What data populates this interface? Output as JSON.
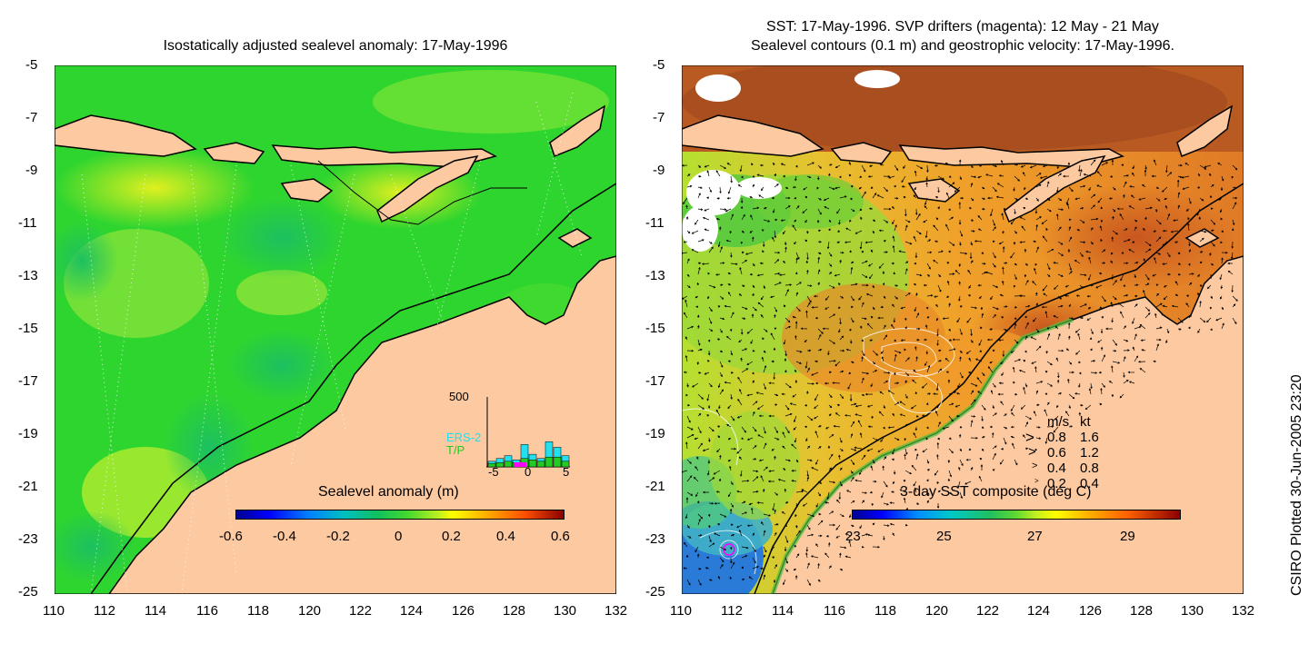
{
  "left_map": {
    "title": "Isostatically adjusted sealevel anomaly: 17-May-1996",
    "x_ticks": [
      "110",
      "112",
      "114",
      "116",
      "118",
      "120",
      "122",
      "124",
      "126",
      "128",
      "130",
      "132"
    ],
    "y_ticks": [
      "-5",
      "-7",
      "-9",
      "-11",
      "-13",
      "-15",
      "-17",
      "-19",
      "-21",
      "-23",
      "-25"
    ],
    "colorbar": {
      "label": "Sealevel anomaly (m)",
      "ticks": [
        "-0.6",
        "-0.4",
        "-0.2",
        "0",
        "0.2",
        "0.4",
        "0.6"
      ],
      "range": [
        -0.6,
        0.6
      ]
    },
    "histogram": {
      "y_max_label": "500",
      "x_ticks": [
        "-5",
        "0",
        "5"
      ],
      "legend": [
        "ERS-2",
        "T/P"
      ],
      "colors": {
        "ers2": "#22e0f0",
        "tp": "#22cc22",
        "marker": "#ff00ff"
      },
      "ers2_counts": [
        40,
        60,
        80,
        50,
        160,
        90,
        60,
        180,
        140,
        80
      ],
      "tp_counts": [
        25,
        30,
        40,
        30,
        60,
        50,
        40,
        70,
        70,
        40
      ]
    }
  },
  "right_map": {
    "title_line1": "SST: 17-May-1996. SVP drifters (magenta): 12 May - 21 May",
    "title_line2": "Sealevel contours (0.1 m) and geostrophic velocity: 17-May-1996.",
    "x_ticks": [
      "110",
      "112",
      "114",
      "116",
      "118",
      "120",
      "122",
      "124",
      "126",
      "128",
      "130",
      "132"
    ],
    "y_ticks": [
      "-5",
      "-7",
      "-9",
      "-11",
      "-13",
      "-15",
      "-17",
      "-19",
      "-21",
      "-23",
      "-25"
    ],
    "colorbar": {
      "label": "3-day SST composite (deg C)",
      "ticks": [
        "23",
        "25",
        "27",
        "29"
      ],
      "range": [
        23,
        29.8
      ]
    },
    "velocity_legend": {
      "header_ms": "m/s",
      "header_kt": "kt",
      "rows": [
        {
          "ms": "0.8",
          "kt": "1.6"
        },
        {
          "ms": "0.6",
          "kt": "1.2"
        },
        {
          "ms": "0.4",
          "kt": "0.8"
        },
        {
          "ms": "0.2",
          "kt": "0.4"
        }
      ]
    }
  },
  "credit": "CSIRO Plotted 30-Jun-2005 23:20",
  "colors": {
    "land": "#fcc9a0",
    "ocean_green": "#2fd52f",
    "ocean_light": "#66e12e",
    "sst_orange": "#f0a02a",
    "sst_brown": "#c8581e",
    "coastline": "#000000"
  }
}
